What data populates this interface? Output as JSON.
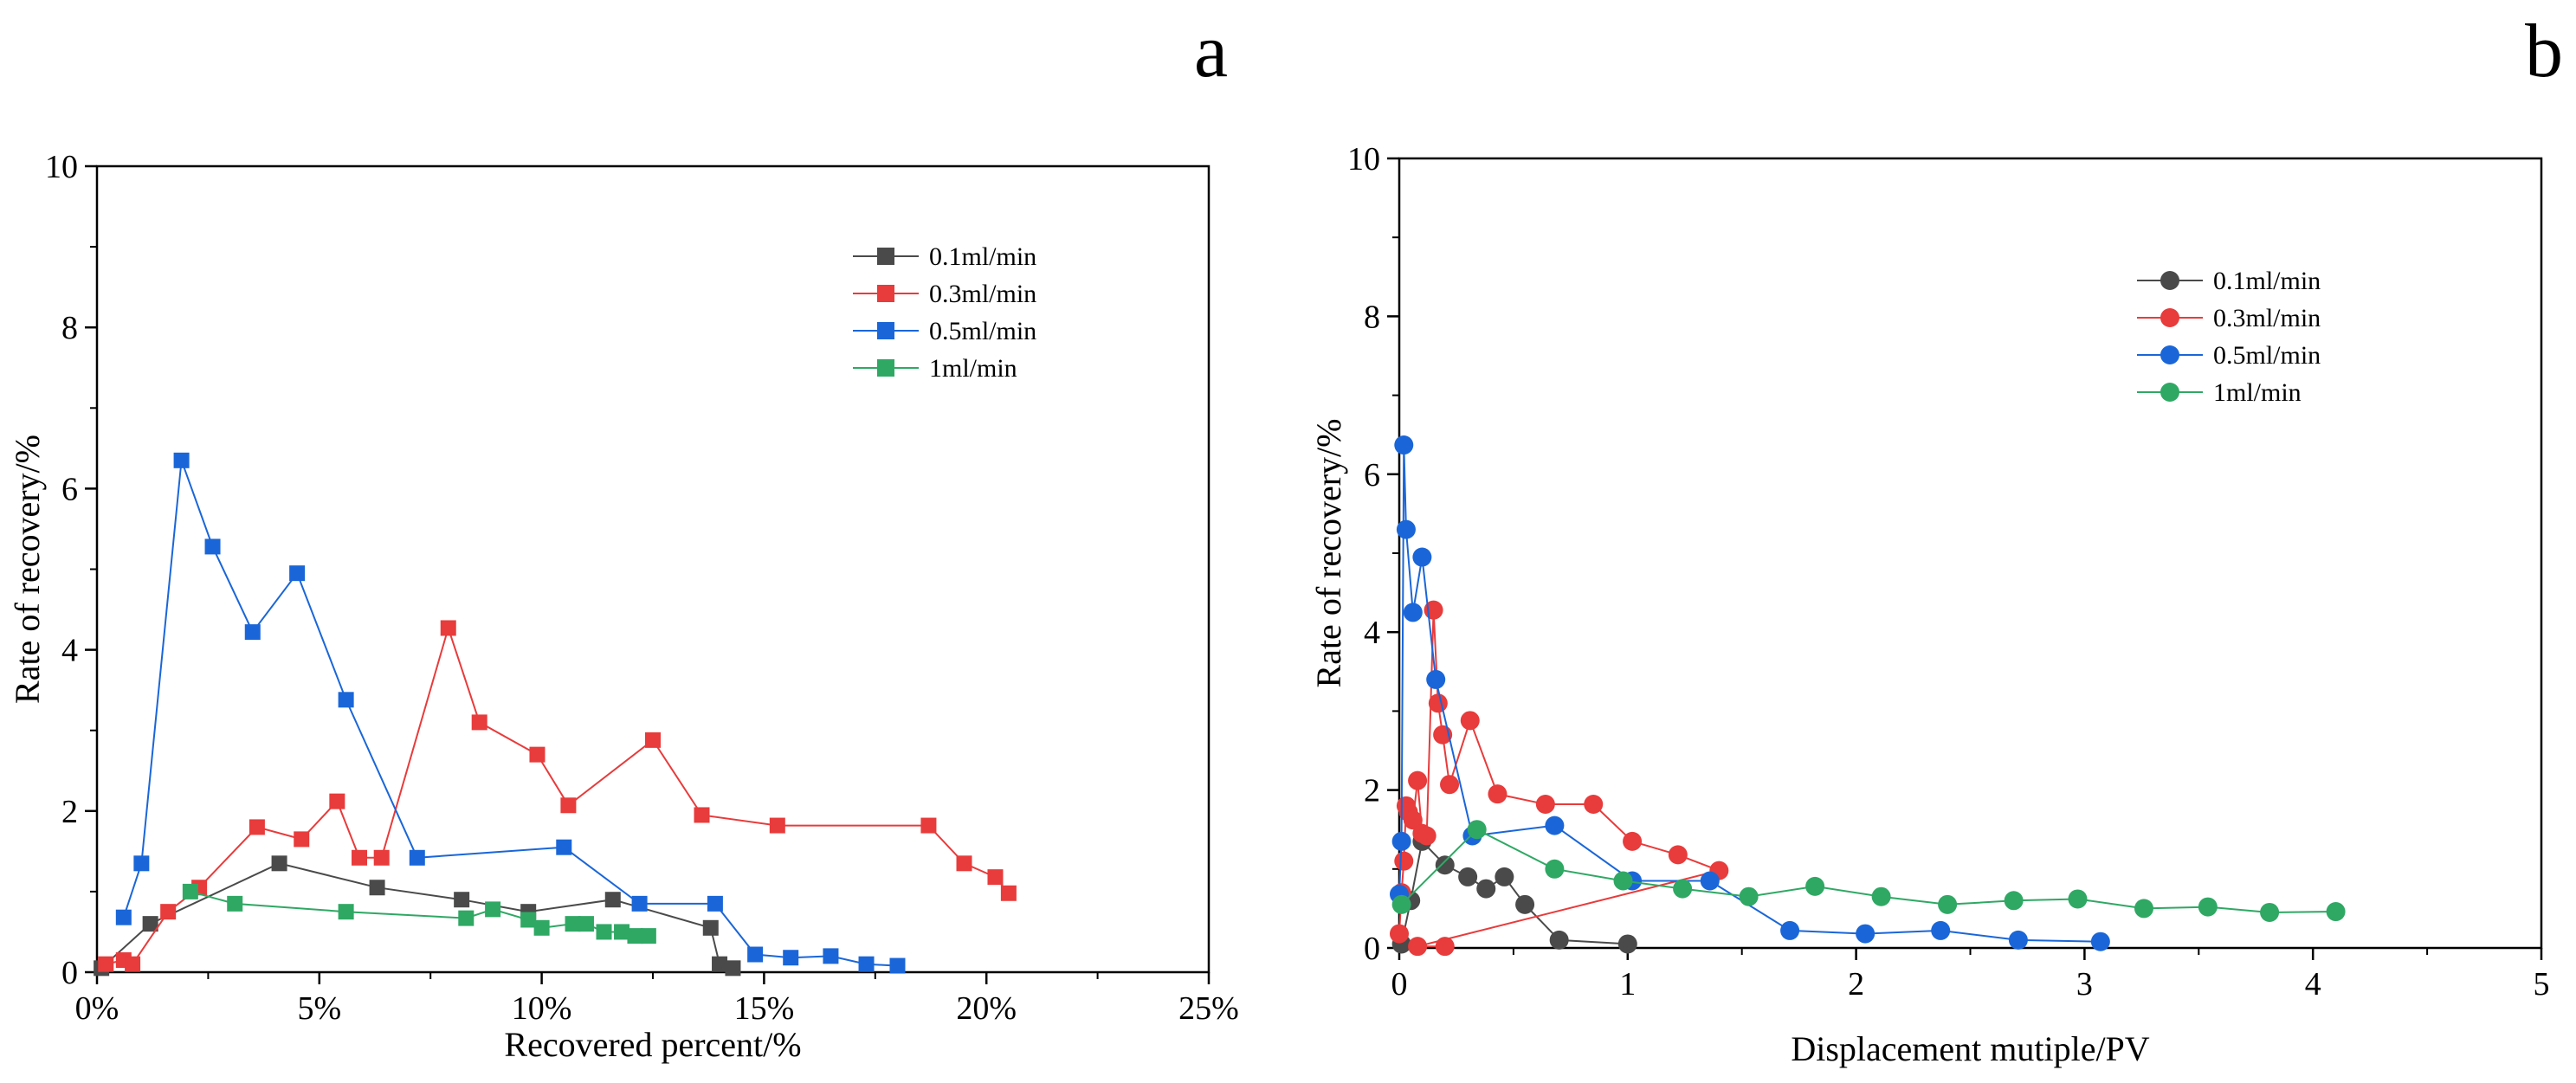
{
  "chart_data": [
    {
      "id": "a",
      "type": "line",
      "panel_label": "a",
      "xlabel": "Recovered percent/%",
      "ylabel": "Rate of recovery/%",
      "xlim": [
        0,
        25
      ],
      "ylim": [
        0,
        10
      ],
      "x_ticks": [
        0,
        5,
        10,
        15,
        20,
        25
      ],
      "x_tick_labels": [
        "0%",
        "5%",
        "10%",
        "15%",
        "20%",
        "25%"
      ],
      "y_ticks": [
        0,
        2,
        4,
        6,
        8,
        10
      ],
      "y_tick_labels": [
        "0",
        "2",
        "4",
        "6",
        "8",
        "10"
      ],
      "marker": "square",
      "legend_position": "top-right",
      "series": [
        {
          "name": "0.1ml/min",
          "color": "#4a4a4a",
          "x": [
            0.1,
            1.2,
            4.1,
            6.3,
            8.2,
            9.7,
            11.6,
            13.8,
            14.0,
            14.3
          ],
          "y": [
            0.05,
            0.6,
            1.35,
            1.05,
            0.9,
            0.75,
            0.9,
            0.55,
            0.1,
            0.05
          ]
        },
        {
          "name": "0.3ml/min",
          "color": "#e83b3b",
          "x": [
            0.2,
            0.6,
            0.8,
            1.6,
            2.3,
            3.6,
            4.6,
            5.4,
            5.9,
            6.4,
            7.9,
            8.6,
            9.9,
            10.6,
            12.5,
            13.6,
            15.3,
            18.7,
            19.5,
            20.2,
            20.5
          ],
          "y": [
            0.1,
            0.15,
            0.1,
            0.75,
            1.05,
            1.8,
            1.65,
            2.12,
            1.42,
            1.42,
            4.27,
            3.1,
            2.7,
            2.07,
            2.88,
            1.95,
            1.82,
            1.82,
            1.35,
            1.18,
            0.98
          ]
        },
        {
          "name": "0.5ml/min",
          "color": "#1a66d8",
          "x": [
            0.6,
            1.0,
            1.9,
            2.6,
            3.5,
            4.5,
            5.6,
            7.2,
            10.5,
            12.2,
            13.9,
            14.8,
            15.6,
            16.5,
            17.3,
            18.0
          ],
          "y": [
            0.68,
            1.35,
            6.35,
            5.28,
            4.22,
            4.95,
            3.38,
            1.42,
            1.55,
            0.85,
            0.85,
            0.22,
            0.18,
            0.2,
            0.1,
            0.08
          ]
        },
        {
          "name": "1ml/min",
          "color": "#2fa864",
          "x": [
            2.1,
            3.1,
            5.6,
            8.3,
            8.9,
            9.7,
            10.0,
            10.7,
            11.0,
            11.4,
            11.8,
            12.1,
            12.4
          ],
          "y": [
            1.0,
            0.85,
            0.75,
            0.67,
            0.78,
            0.65,
            0.55,
            0.6,
            0.6,
            0.5,
            0.5,
            0.45,
            0.45
          ]
        }
      ]
    },
    {
      "id": "b",
      "type": "line",
      "panel_label": "b",
      "xlabel": "Displacement mutiple/PV",
      "ylabel": "Rate of recovery/%",
      "xlim": [
        0,
        5
      ],
      "ylim": [
        0,
        10
      ],
      "x_ticks": [
        0,
        1,
        2,
        3,
        4,
        5
      ],
      "x_tick_labels": [
        "0",
        "1",
        "2",
        "3",
        "4",
        "5"
      ],
      "y_ticks": [
        0,
        2,
        4,
        6,
        8,
        10
      ],
      "y_tick_labels": [
        "0",
        "2",
        "4",
        "6",
        "8",
        "10"
      ],
      "marker": "circle",
      "legend_position": "top-right",
      "series": [
        {
          "name": "0.1ml/min",
          "color": "#4a4a4a",
          "x": [
            0.01,
            0.05,
            0.1,
            0.2,
            0.3,
            0.38,
            0.46,
            0.55,
            0.7,
            1.0
          ],
          "y": [
            0.05,
            0.6,
            1.35,
            1.05,
            0.9,
            0.75,
            0.9,
            0.55,
            0.1,
            0.05
          ]
        },
        {
          "name": "0.3ml/min",
          "color": "#e83b3b",
          "x": [
            0.0,
            0.01,
            0.02,
            0.03,
            0.04,
            0.06,
            0.08,
            0.1,
            0.12,
            0.15,
            0.17,
            0.19,
            0.22,
            0.31,
            0.43,
            0.64,
            0.85,
            1.02,
            1.22,
            1.4,
            0.08,
            0.2
          ],
          "y": [
            0.18,
            0.7,
            1.1,
            1.8,
            1.72,
            1.62,
            2.12,
            1.45,
            1.42,
            4.28,
            3.1,
            2.7,
            2.07,
            2.88,
            1.95,
            1.82,
            1.82,
            1.35,
            1.18,
            0.98,
            0.02,
            0.02
          ]
        },
        {
          "name": "0.5ml/min",
          "color": "#1a66d8",
          "x": [
            0.0,
            0.01,
            0.02,
            0.03,
            0.06,
            0.1,
            0.16,
            0.32,
            0.68,
            1.02,
            1.36,
            1.71,
            2.04,
            2.37,
            2.71,
            3.07
          ],
          "y": [
            0.68,
            1.35,
            6.37,
            5.3,
            4.25,
            4.95,
            3.4,
            1.42,
            1.55,
            0.85,
            0.85,
            0.22,
            0.18,
            0.22,
            0.1,
            0.08
          ]
        },
        {
          "name": "1ml/min",
          "color": "#2fa864",
          "x": [
            0.01,
            0.34,
            0.68,
            0.98,
            1.24,
            1.53,
            1.82,
            2.11,
            2.4,
            2.69,
            2.97,
            3.26,
            3.54,
            3.81,
            4.1
          ],
          "y": [
            0.55,
            1.5,
            1.0,
            0.85,
            0.75,
            0.65,
            0.78,
            0.65,
            0.55,
            0.6,
            0.62,
            0.5,
            0.52,
            0.45,
            0.46
          ]
        }
      ]
    }
  ]
}
